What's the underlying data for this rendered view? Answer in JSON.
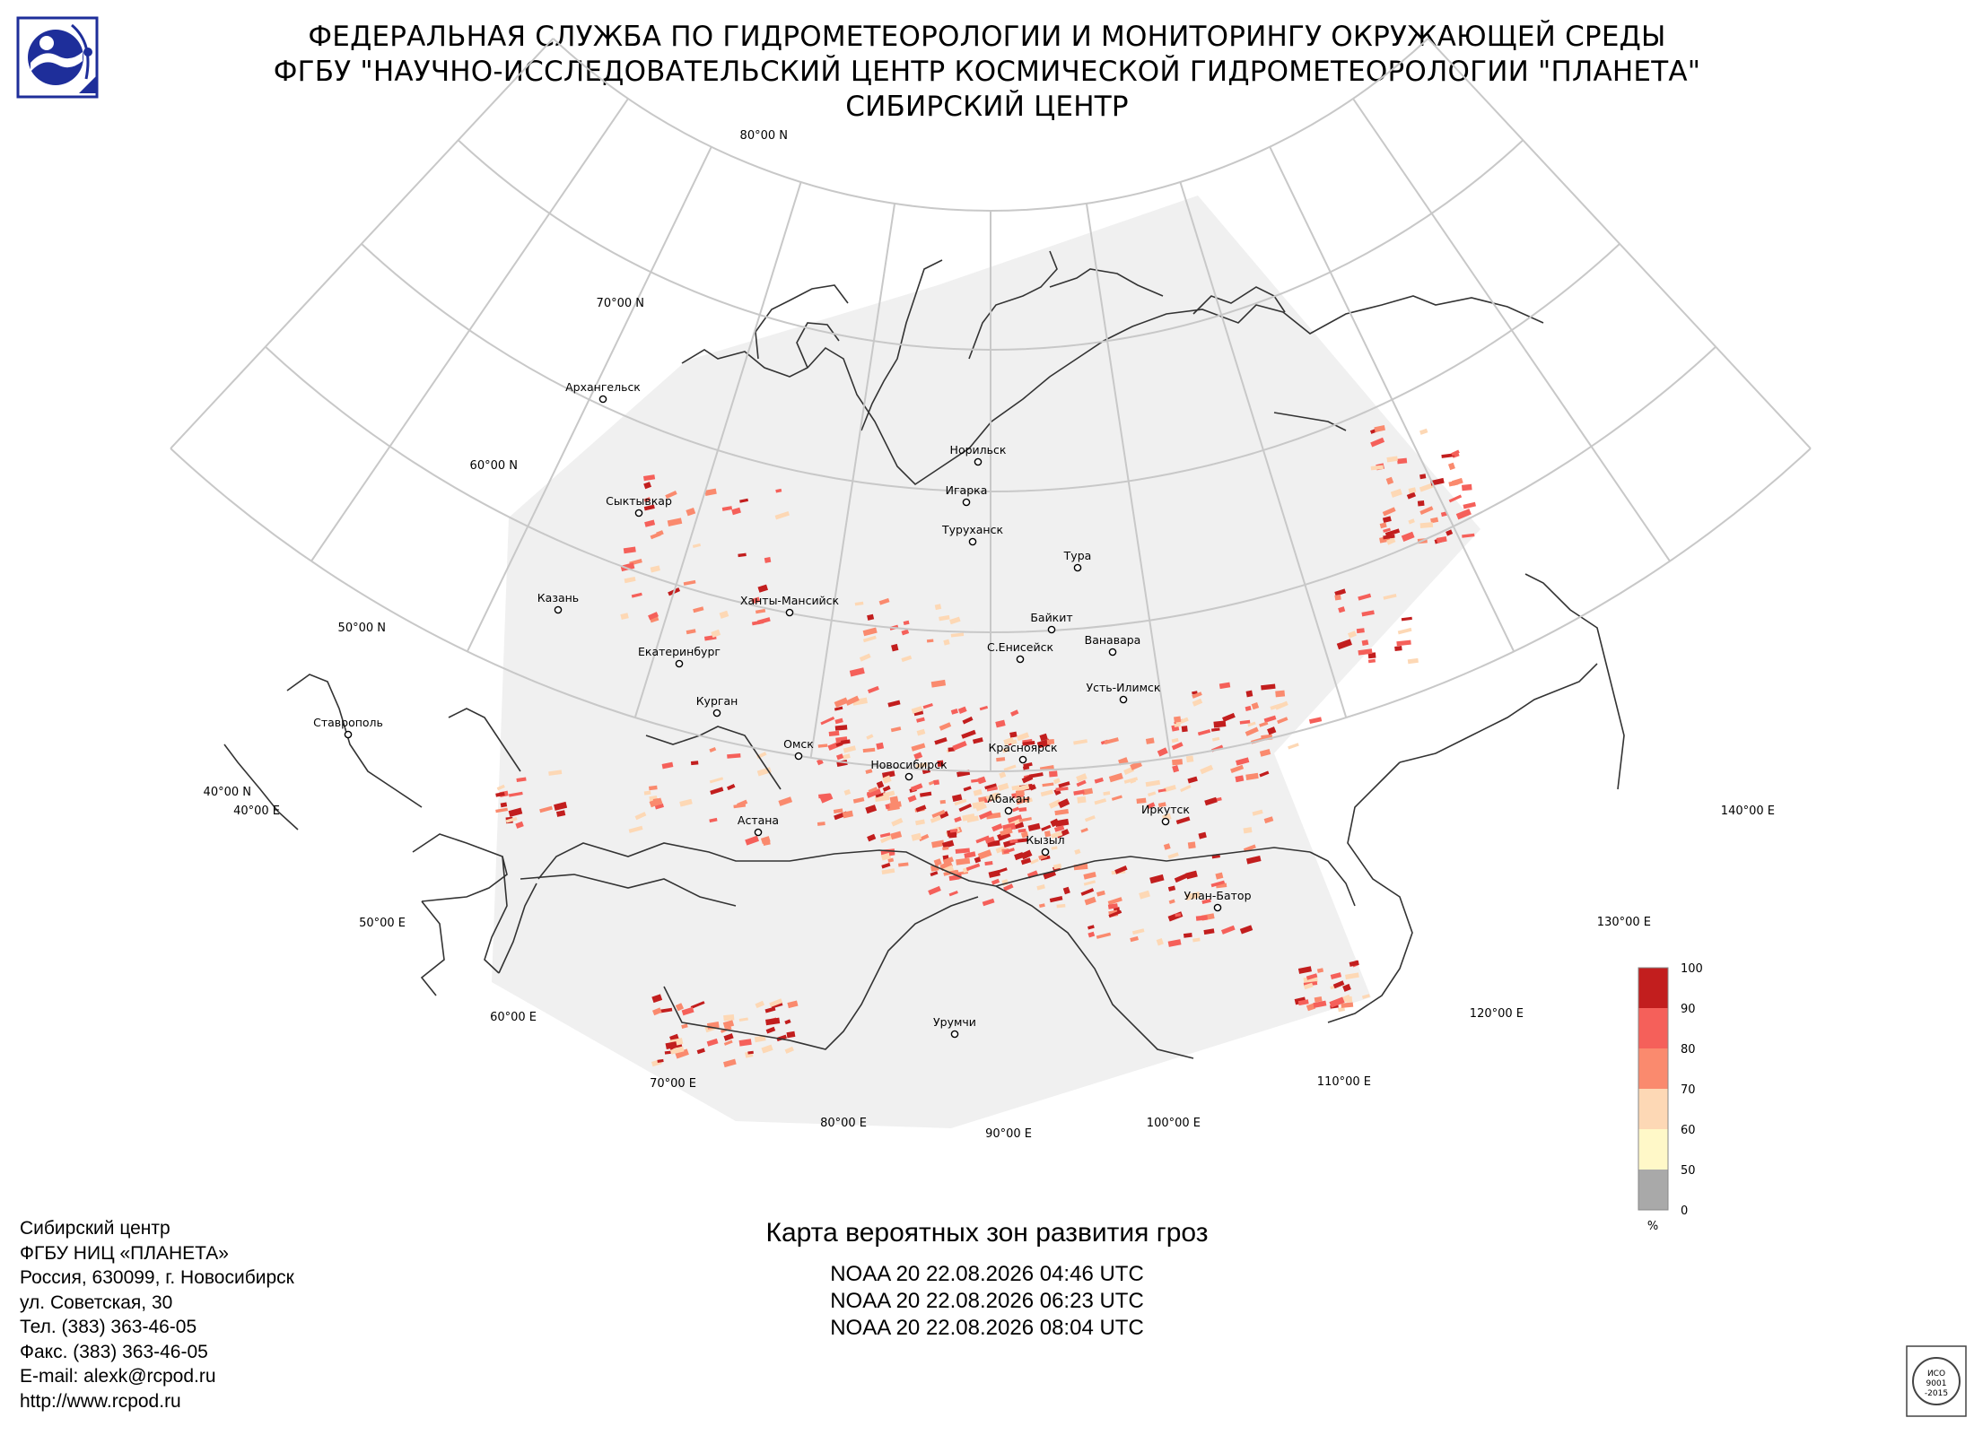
{
  "header": {
    "line1": "ФЕДЕРАЛЬНАЯ СЛУЖБА ПО ГИДРОМЕТЕОРОЛОГИИ И МОНИТОРИНГУ ОКРУЖАЮЩЕЙ СРЕДЫ",
    "line2": "ФГБУ \"НАУЧНО-ИССЛЕДОВАТЕЛЬСКИЙ ЦЕНТР КОСМИЧЕСКОЙ ГИДРОМЕТЕОРОЛОГИИ \"ПЛАНЕТА\"",
    "line3": "СИБИРСКИЙ ЦЕНТР"
  },
  "map": {
    "graticule": {
      "latitudes": [
        "80°00 N",
        "70°00 N",
        "60°00 N",
        "50°00 N",
        "40°00 N"
      ],
      "longitudes": [
        "40°00 E",
        "50°00 E",
        "60°00 E",
        "70°00 E",
        "80°00 E",
        "90°00 E",
        "100°00 E",
        "110°00 E",
        "120°00 E",
        "130°00 E",
        "140°00 E"
      ]
    },
    "cities": [
      "Архангельск",
      "Сыктывкар",
      "Казань",
      "Екатеринбург",
      "Ставрополь",
      "Ханты-Мансийск",
      "Курган",
      "Омск",
      "Астана",
      "Новосибирск",
      "Норильск",
      "Игарка",
      "Туруханск",
      "Тура",
      "Байкит",
      "Ванавара",
      "С.Енисейск",
      "Усть-Илимск",
      "Красноярск",
      "Абакан",
      "Иркутск",
      "Кызыл",
      "Улан-Батор",
      "Урумчи"
    ]
  },
  "legend": {
    "ticks": [
      "100",
      "90",
      "80",
      "70",
      "60",
      "50",
      "0"
    ],
    "unit": "%",
    "colors": [
      "#c21e1e",
      "#f5605a",
      "#fa8a6e",
      "#fdd8b5",
      "#fff8c8",
      "#a9a9a9"
    ]
  },
  "address": {
    "lines": [
      "Сибирский центр",
      "ФГБУ НИЦ «ПЛАНЕТА»",
      "Россия, 630099, г. Новосибирск",
      "ул. Советская, 30",
      "Тел. (383) 363-46-05",
      "Факс. (383) 363-46-05",
      "E-mail: alexk@rcpod.ru",
      "http://www.rcpod.ru"
    ]
  },
  "caption": {
    "title": "Карта вероятных зон развития гроз",
    "passes": [
      "NOAA 20 22.08.2026  04:46 UTC",
      "NOAA 20 22.08.2026  06:23 UTC",
      "NOAA 20 22.08.2026  08:04 UTC"
    ]
  },
  "certificate": {
    "lines": [
      "ИСО",
      "9001",
      "-2015"
    ]
  }
}
